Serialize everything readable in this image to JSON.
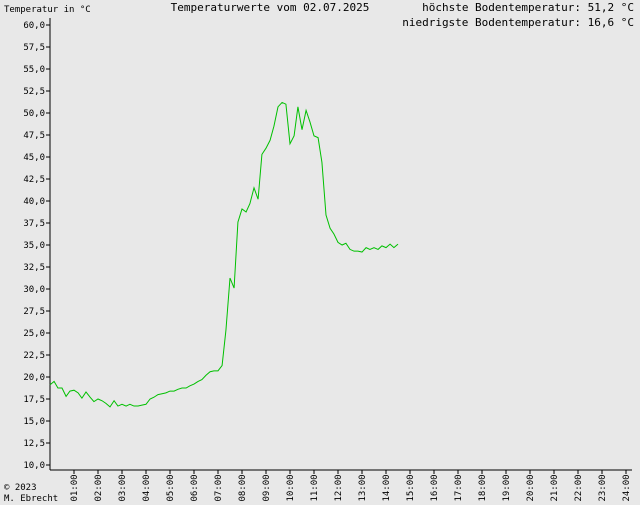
{
  "chart_data": {
    "type": "line",
    "title": "Temperaturwerte vom 02.07.2025",
    "y_label": "Temperatur in °C",
    "annotations": [
      "höchste Bodentemperatur: 51,2 °C",
      "niedrigste Bodentemperatur: 16,6 °C"
    ],
    "footer": [
      "© 2023",
      "M. Ebrecht"
    ],
    "xlim": [
      0,
      24
    ],
    "xticks": [
      {
        "value": 1,
        "label": "01:00"
      },
      {
        "value": 2,
        "label": "02:00"
      },
      {
        "value": 3,
        "label": "03:00"
      },
      {
        "value": 4,
        "label": "04:00"
      },
      {
        "value": 5,
        "label": "05:00"
      },
      {
        "value": 6,
        "label": "06:00"
      },
      {
        "value": 7,
        "label": "07:00"
      },
      {
        "value": 8,
        "label": "08:00"
      },
      {
        "value": 9,
        "label": "09:00"
      },
      {
        "value": 10,
        "label": "10:00"
      },
      {
        "value": 11,
        "label": "11:00"
      },
      {
        "value": 12,
        "label": "12:00"
      },
      {
        "value": 13,
        "label": "13:00"
      },
      {
        "value": 14,
        "label": "14:00"
      },
      {
        "value": 15,
        "label": "15:00"
      },
      {
        "value": 16,
        "label": "16:00"
      },
      {
        "value": 17,
        "label": "17:00"
      },
      {
        "value": 18,
        "label": "18:00"
      },
      {
        "value": 19,
        "label": "19:00"
      },
      {
        "value": 20,
        "label": "20:00"
      },
      {
        "value": 21,
        "label": "21:00"
      },
      {
        "value": 22,
        "label": "22:00"
      },
      {
        "value": 23,
        "label": "23:00"
      },
      {
        "value": 24,
        "label": "24:00"
      }
    ],
    "ylim": [
      10,
      60
    ],
    "yticks": [
      {
        "value": 60,
        "label": "60,0"
      },
      {
        "value": 57.5,
        "label": "57,5"
      },
      {
        "value": 55,
        "label": "55,0"
      },
      {
        "value": 52.5,
        "label": "52,5"
      },
      {
        "value": 50,
        "label": "50,0"
      },
      {
        "value": 47.5,
        "label": "47,5"
      },
      {
        "value": 45,
        "label": "45,0"
      },
      {
        "value": 42.5,
        "label": "42,5"
      },
      {
        "value": 40,
        "label": "40,0"
      },
      {
        "value": 37.5,
        "label": "37,5"
      },
      {
        "value": 35,
        "label": "35,0"
      },
      {
        "value": 32.5,
        "label": "32,5"
      },
      {
        "value": 30,
        "label": "30,0"
      },
      {
        "value": 27.5,
        "label": "27,5"
      },
      {
        "value": 25,
        "label": "25,0"
      },
      {
        "value": 22.5,
        "label": "22,5"
      },
      {
        "value": 20,
        "label": "20,0"
      },
      {
        "value": 17.5,
        "label": "17,5"
      },
      {
        "value": 15,
        "label": "15,0"
      },
      {
        "value": 12.5,
        "label": "12,5"
      },
      {
        "value": 10,
        "label": "10,0"
      }
    ],
    "color": "#00c000",
    "x": [
      0,
      0.17,
      0.33,
      0.5,
      0.67,
      0.83,
      1,
      1.17,
      1.33,
      1.5,
      1.67,
      1.83,
      2,
      2.17,
      2.33,
      2.5,
      2.67,
      2.83,
      3,
      3.17,
      3.33,
      3.5,
      3.67,
      3.83,
      4,
      4.17,
      4.33,
      4.5,
      4.67,
      4.83,
      5,
      5.17,
      5.33,
      5.5,
      5.67,
      5.83,
      6,
      6.17,
      6.33,
      6.5,
      6.67,
      6.83,
      7,
      7.17,
      7.33,
      7.5,
      7.67,
      7.83,
      8,
      8.17,
      8.33,
      8.5,
      8.67,
      8.83,
      9,
      9.17,
      9.33,
      9.5,
      9.67,
      9.83,
      10,
      10.17,
      10.33,
      10.5,
      10.67,
      10.83,
      11,
      11.17,
      11.33,
      11.5,
      11.67,
      11.83,
      12,
      12.17,
      12.33,
      12.5,
      12.67,
      12.83,
      13,
      13.17,
      13.33,
      13.5,
      13.67,
      13.83,
      14,
      14.17,
      14.33,
      14.5
    ],
    "values": [
      19.1,
      19.5,
      18.75,
      18.75,
      17.8,
      18.4,
      18.5,
      18.2,
      17.6,
      18.3,
      17.7,
      17.2,
      17.5,
      17.3,
      17.0,
      16.6,
      17.3,
      16.7,
      16.9,
      16.7,
      16.9,
      16.7,
      16.7,
      16.8,
      16.9,
      17.5,
      17.7,
      18.0,
      18.1,
      18.2,
      18.4,
      18.4,
      18.6,
      18.75,
      18.75,
      19.0,
      19.2,
      19.5,
      19.7,
      20.2,
      20.6,
      20.7,
      20.7,
      21.3,
      25.3,
      31.25,
      30.1,
      37.6,
      39.1,
      38.75,
      39.7,
      41.5,
      40.2,
      45.3,
      46.0,
      46.9,
      48.5,
      50.7,
      51.2,
      51.0,
      46.5,
      47.4,
      50.7,
      48.1,
      50.3,
      49.0,
      47.4,
      47.2,
      44.4,
      38.4,
      36.9,
      36.25,
      35.3,
      35.0,
      35.2,
      34.5,
      34.3,
      34.3,
      34.2,
      34.7,
      34.5,
      34.7,
      34.5,
      34.9,
      34.7,
      35.1,
      34.7,
      35.1
    ]
  }
}
